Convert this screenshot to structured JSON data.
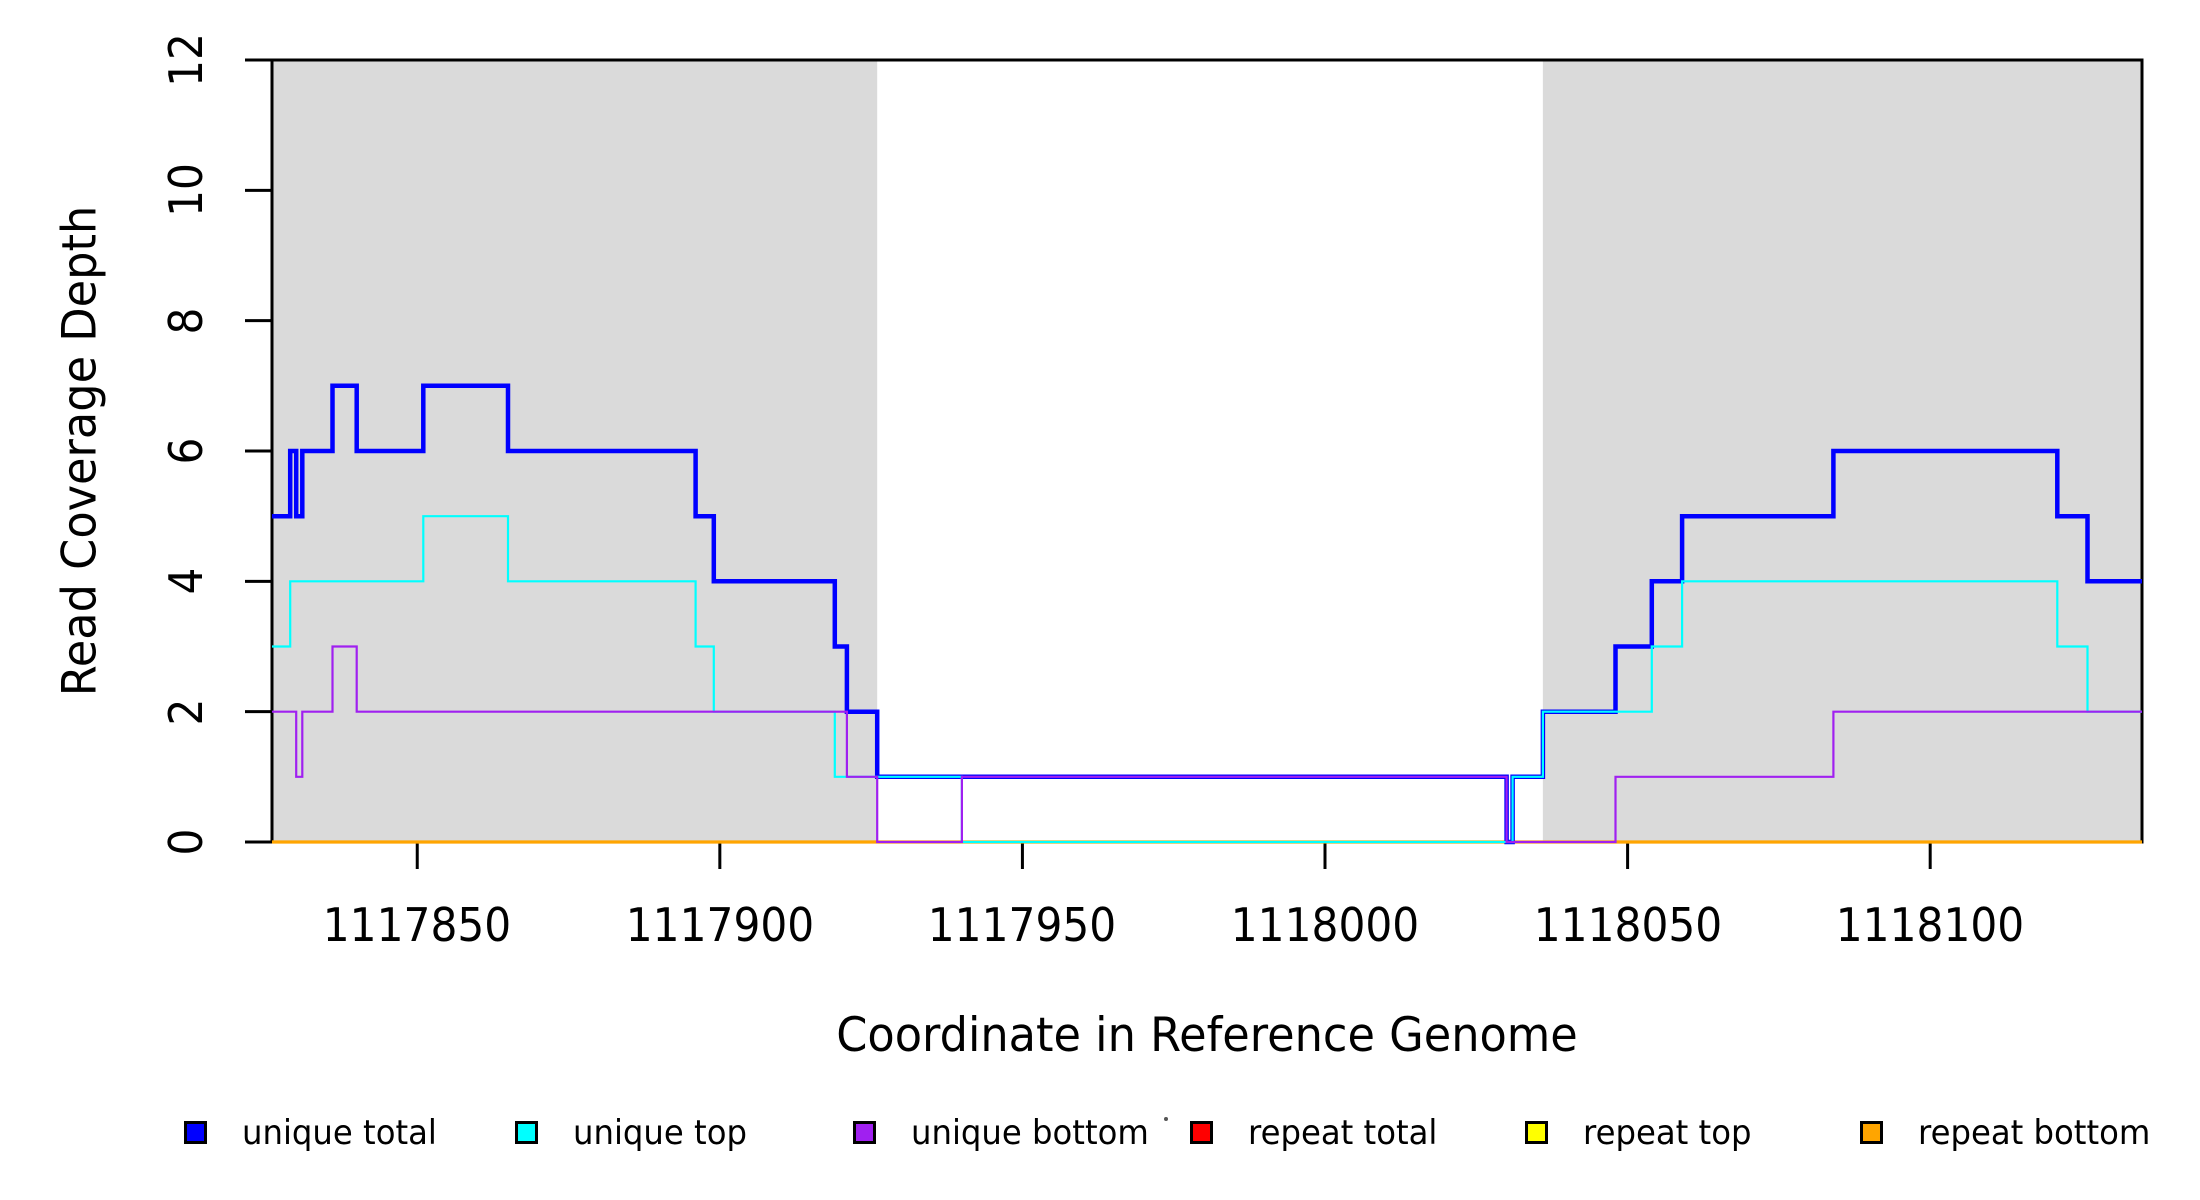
{
  "chart_data": {
    "type": "line",
    "subtype": "step-coverage",
    "title": "",
    "xlabel": "Coordinate in Reference Genome",
    "ylabel": "Read Coverage Depth",
    "xlim": [
      1117826,
      1118135
    ],
    "ylim": [
      0,
      12
    ],
    "x_ticks": [
      "1117850",
      "1117900",
      "1117950",
      "1118000",
      "1118050",
      "1118100"
    ],
    "x_tick_values": [
      1117850,
      1117900,
      1117950,
      1118000,
      1118050,
      1118100
    ],
    "y_ticks": [
      "0",
      "2",
      "4",
      "6",
      "8",
      "10",
      "12"
    ],
    "y_tick_values": [
      0,
      2,
      4,
      6,
      8,
      10,
      12
    ],
    "grid": false,
    "legend_position": "bottom",
    "plot_bg": "#FFFFFF",
    "shading": {
      "color": "#DADADA",
      "regions": [
        {
          "name": "left-unique-region",
          "from": 1117826,
          "to": 1117926
        },
        {
          "name": "right-unique-region",
          "from": 1118036,
          "to": 1118135
        }
      ]
    },
    "series": [
      {
        "name": "repeat total",
        "color": "#FF0000",
        "width": 2.2,
        "steps": [
          [
            1117826,
            0
          ]
        ],
        "end": 1118135
      },
      {
        "name": "repeat top",
        "color": "#FFFF00",
        "width": 2.2,
        "steps": [
          [
            1117826,
            0
          ]
        ],
        "end": 1118135
      },
      {
        "name": "repeat bottom",
        "color": "#FFA500",
        "width": 3.2,
        "steps": [
          [
            1117826,
            0
          ]
        ],
        "end": 1118135
      },
      {
        "name": "unique total",
        "color": "#0000FF",
        "width": 4.5,
        "steps": [
          [
            1117826,
            5
          ],
          [
            1117829,
            6
          ],
          [
            1117830,
            5
          ],
          [
            1117831,
            6
          ],
          [
            1117836,
            7
          ],
          [
            1117840,
            6
          ],
          [
            1117851,
            7
          ],
          [
            1117865,
            6
          ],
          [
            1117896,
            5
          ],
          [
            1117899,
            4
          ],
          [
            1117919,
            3
          ],
          [
            1117921,
            2
          ],
          [
            1117926,
            1
          ],
          [
            1118030,
            0
          ],
          [
            1118031,
            1
          ],
          [
            1118036,
            2
          ],
          [
            1118048,
            3
          ],
          [
            1118054,
            4
          ],
          [
            1118059,
            5
          ],
          [
            1118084,
            6
          ],
          [
            1118121,
            5
          ],
          [
            1118126,
            4
          ]
        ],
        "end": 1118135
      },
      {
        "name": "unique top",
        "color": "#00FFFF",
        "width": 2.2,
        "steps": [
          [
            1117826,
            3
          ],
          [
            1117829,
            4
          ],
          [
            1117851,
            5
          ],
          [
            1117865,
            4
          ],
          [
            1117896,
            3
          ],
          [
            1117899,
            2
          ],
          [
            1117919,
            1
          ],
          [
            1117940,
            0
          ],
          [
            1118031,
            1
          ],
          [
            1118036,
            2
          ],
          [
            1118054,
            3
          ],
          [
            1118059,
            4
          ],
          [
            1118121,
            3
          ],
          [
            1118126,
            2
          ]
        ],
        "end": 1118135
      },
      {
        "name": "unique bottom",
        "color": "#A020F0",
        "width": 2.2,
        "steps": [
          [
            1117826,
            2
          ],
          [
            1117830,
            1
          ],
          [
            1117831,
            2
          ],
          [
            1117836,
            3
          ],
          [
            1117840,
            2
          ],
          [
            1117921,
            1
          ],
          [
            1117926,
            0
          ],
          [
            1117940,
            1
          ],
          [
            1118030,
            0
          ],
          [
            1118048,
            1
          ],
          [
            1118084,
            2
          ]
        ],
        "end": 1118135
      }
    ],
    "legend": [
      {
        "label": "unique total",
        "color": "#0000FF"
      },
      {
        "label": "unique top",
        "color": "#00FFFF"
      },
      {
        "label": "unique bottom",
        "color": "#A020F0"
      },
      {
        "label": "repeat total",
        "color": "#FF0000"
      },
      {
        "label": "repeat top",
        "color": "#FFFF00"
      },
      {
        "label": "repeat bottom",
        "color": "#FFA500"
      }
    ],
    "axis_color": "#000000"
  }
}
